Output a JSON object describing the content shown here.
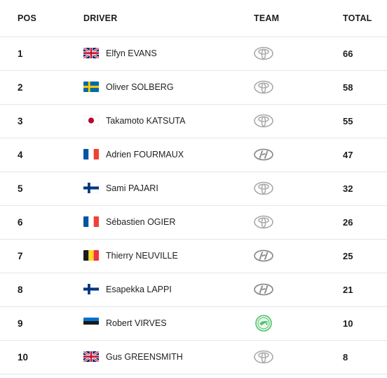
{
  "header": {
    "pos": "POS",
    "driver": "DRIVER",
    "team": "TEAM",
    "total": "TOTAL"
  },
  "rows": [
    {
      "pos": "1",
      "driver": "Elfyn EVANS",
      "flag": "gb-flag-icon",
      "team": "toyota-logo-icon",
      "total": "66"
    },
    {
      "pos": "2",
      "driver": "Oliver SOLBERG",
      "flag": "se-flag-icon",
      "team": "toyota-logo-icon",
      "total": "58"
    },
    {
      "pos": "3",
      "driver": "Takamoto KATSUTA",
      "flag": "jp-flag-icon",
      "team": "toyota-logo-icon",
      "total": "55"
    },
    {
      "pos": "4",
      "driver": "Adrien FOURMAUX",
      "flag": "fr-flag-icon",
      "team": "hyundai-logo-icon",
      "total": "47"
    },
    {
      "pos": "5",
      "driver": "Sami PAJARI",
      "flag": "fi-flag-icon",
      "team": "toyota-logo-icon",
      "total": "32"
    },
    {
      "pos": "6",
      "driver": "Sébastien OGIER",
      "flag": "fr-flag-icon",
      "team": "toyota-logo-icon",
      "total": "26"
    },
    {
      "pos": "7",
      "driver": "Thierry NEUVILLE",
      "flag": "be-flag-icon",
      "team": "hyundai-logo-icon",
      "total": "25"
    },
    {
      "pos": "8",
      "driver": "Esapekka LAPPI",
      "flag": "fi-flag-icon",
      "team": "hyundai-logo-icon",
      "total": "21"
    },
    {
      "pos": "9",
      "driver": "Robert VIRVES",
      "flag": "ee-flag-icon",
      "team": "skoda-logo-icon",
      "total": "10"
    },
    {
      "pos": "10",
      "driver": "Gus GREENSMITH",
      "flag": "gb-flag-icon",
      "team": "toyota-logo-icon",
      "total": "8"
    }
  ]
}
